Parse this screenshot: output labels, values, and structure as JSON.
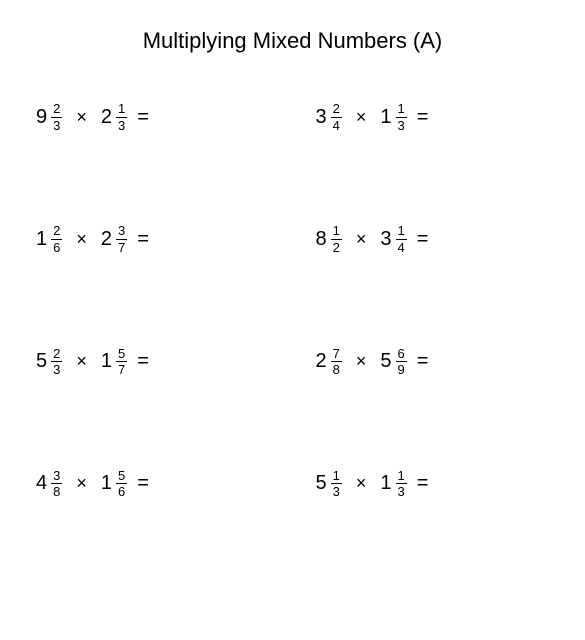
{
  "document": {
    "title": "Multiplying Mixed Numbers (A)",
    "title_fontsize": 22,
    "body_fontsize": 20,
    "fraction_fontsize": 13,
    "background_color": "#ffffff",
    "text_color": "#000000",
    "operator_symbol": "×",
    "equals_symbol": "=",
    "grid": {
      "rows": 4,
      "cols": 2,
      "row_gap": 92,
      "col_gap": 40
    }
  },
  "problems": [
    {
      "a_whole": "9",
      "a_num": "2",
      "a_den": "3",
      "b_whole": "2",
      "b_num": "1",
      "b_den": "3"
    },
    {
      "a_whole": "3",
      "a_num": "2",
      "a_den": "4",
      "b_whole": "1",
      "b_num": "1",
      "b_den": "3"
    },
    {
      "a_whole": "1",
      "a_num": "2",
      "a_den": "6",
      "b_whole": "2",
      "b_num": "3",
      "b_den": "7"
    },
    {
      "a_whole": "8",
      "a_num": "1",
      "a_den": "2",
      "b_whole": "3",
      "b_num": "1",
      "b_den": "4"
    },
    {
      "a_whole": "5",
      "a_num": "2",
      "a_den": "3",
      "b_whole": "1",
      "b_num": "5",
      "b_den": "7"
    },
    {
      "a_whole": "2",
      "a_num": "7",
      "a_den": "8",
      "b_whole": "5",
      "b_num": "6",
      "b_den": "9"
    },
    {
      "a_whole": "4",
      "a_num": "3",
      "a_den": "8",
      "b_whole": "1",
      "b_num": "5",
      "b_den": "6"
    },
    {
      "a_whole": "5",
      "a_num": "1",
      "a_den": "3",
      "b_whole": "1",
      "b_num": "1",
      "b_den": "3"
    }
  ]
}
